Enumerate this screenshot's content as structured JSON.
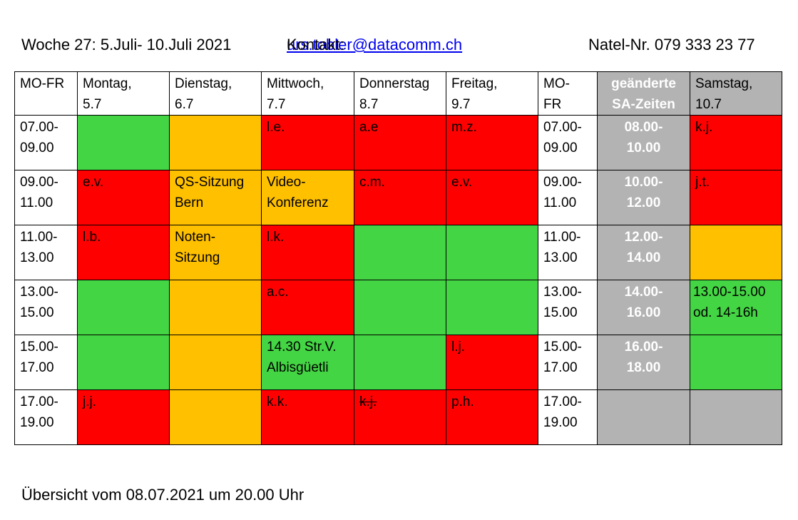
{
  "header": {
    "week": "Woche 27: 5.Juli- 10.Juli 2021",
    "contact_label": "Kontakt: ",
    "contact_email": "urs.tobler@datacomm.ch",
    "phone": "Natel-Nr. 079 333 23 77"
  },
  "colors": {
    "green": "#44d544",
    "red": "#ff0000",
    "orange": "#ffc000",
    "grey": "#b3b3b3"
  },
  "table": {
    "headers": [
      "MO-FR",
      "Montag,\n5.7",
      "Dienstag,\n6.7",
      "Mittwoch,\n7.7",
      "Donnerstag\n8.7",
      "Freitag,\n9.7",
      "MO-\nFR",
      "geänderte\nSA-Zeiten",
      "Samstag,\n10.7"
    ],
    "rows": [
      {
        "time": "07.00-\n09.00",
        "mo": "",
        "di": "",
        "mi": "l.e.",
        "do": "a.e",
        "fr": "m.z.",
        "time2": "07.00-\n09.00",
        "sa_time": "08.00-\n10.00",
        "sa": "k.j."
      },
      {
        "time": "09.00-\n11.00",
        "mo": "e.v.",
        "di": "QS-Sitzung\nBern",
        "mi": "Video-\nKonferenz",
        "do": "c.m.",
        "fr": "e.v.",
        "time2": "09.00-\n11.00",
        "sa_time": "10.00-\n12.00",
        "sa": "j.t."
      },
      {
        "time": "11.00-\n13.00",
        "mo": "l.b.",
        "di": "Noten-\nSitzung",
        "mi": "l.k.",
        "do": "",
        "fr": "",
        "time2": "11.00-\n13.00",
        "sa_time": "12.00-\n14.00",
        "sa": ""
      },
      {
        "time": "13.00-\n15.00",
        "mo": "",
        "di": "",
        "mi": "a.c.",
        "do": "",
        "fr": "",
        "time2": "13.00-\n15.00",
        "sa_time": "14.00-\n16.00",
        "sa": "13.00-15.00\nod. 14-16h"
      },
      {
        "time": "15.00-\n17.00",
        "mo": "",
        "di": "",
        "mi": "14.30 Str.V.\nAlbisgüetli",
        "do": "",
        "fr": "l.j.",
        "time2": "15.00-\n17.00",
        "sa_time": "16.00-\n18.00",
        "sa": ""
      },
      {
        "time": "17.00-\n19.00",
        "mo": "j.j.",
        "di": "",
        "mi": "k.k.",
        "do": "k.j.",
        "fr": "p.h.",
        "time2": "17.00-\n19.00",
        "sa_time": "",
        "sa": ""
      }
    ],
    "status_colors": [
      [
        "green",
        "orange",
        "red",
        "red",
        "red",
        "grey",
        "red"
      ],
      [
        "red",
        "orange",
        "orange",
        "red",
        "red",
        "grey",
        "red"
      ],
      [
        "red",
        "orange",
        "red",
        "green",
        "green",
        "grey",
        "orange"
      ],
      [
        "green",
        "orange",
        "red",
        "green",
        "green",
        "grey",
        "green"
      ],
      [
        "green",
        "orange",
        "green",
        "green",
        "red",
        "grey",
        "green"
      ],
      [
        "red",
        "orange",
        "red",
        "red",
        "red",
        "grey",
        "grey"
      ]
    ],
    "struck_cells": [
      "5.do"
    ]
  },
  "footer": "Übersicht vom 08.07.2021 um 20.00 Uhr"
}
